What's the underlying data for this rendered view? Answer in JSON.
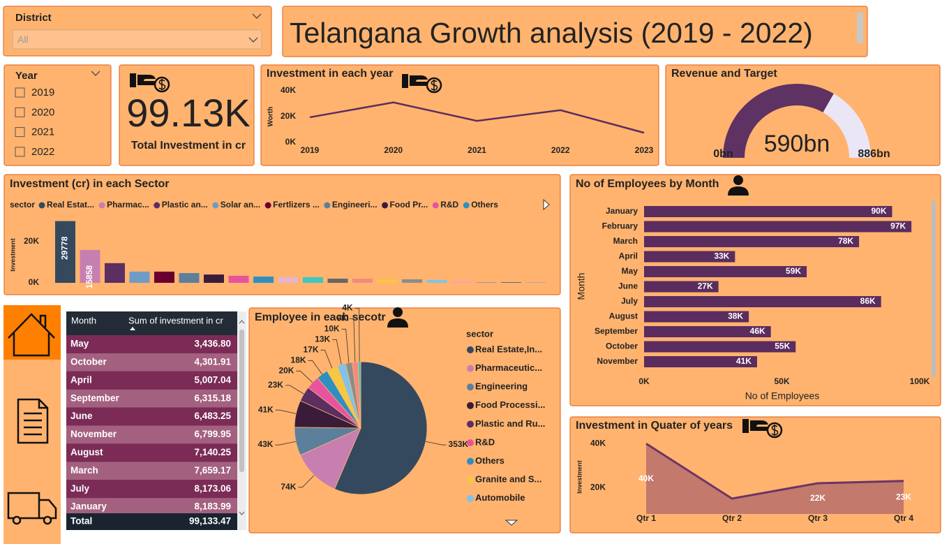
{
  "slicers": {
    "district": {
      "label": "District",
      "value": "All"
    },
    "year": {
      "label": "Year",
      "options": [
        "2019",
        "2020",
        "2021",
        "2022"
      ]
    }
  },
  "header": {
    "title": "Telangana Growth analysis (2019 - 2022)"
  },
  "card": {
    "value": "99.13K",
    "label": "Total Investment in cr"
  },
  "table": {
    "columns": [
      "Month",
      "Sum of investment in cr"
    ],
    "rows": [
      [
        "May",
        "3,436.80"
      ],
      [
        "October",
        "4,301.91"
      ],
      [
        "April",
        "5,007.04"
      ],
      [
        "September",
        "6,315.18"
      ],
      [
        "June",
        "6,483.25"
      ],
      [
        "November",
        "6,799.95"
      ],
      [
        "August",
        "7,140.25"
      ],
      [
        "March",
        "7,659.17"
      ],
      [
        "July",
        "8,173.06"
      ],
      [
        "January",
        "8,183.99"
      ]
    ],
    "total": [
      "Total",
      "99,133.47"
    ]
  },
  "chart_data": [
    {
      "type": "line",
      "title": "Investment in each year",
      "categories": [
        "2019",
        "2020",
        "2021",
        "2022",
        "2023"
      ],
      "values": [
        19500,
        31000,
        16700,
        25000,
        7500
      ],
      "ylabel": "Worth",
      "color": "#5b2c5e",
      "ylim": [
        0,
        40000
      ],
      "yticks": [
        {
          "value": 0,
          "label": "0K"
        },
        {
          "value": 20000,
          "label": "20K"
        },
        {
          "value": 40000,
          "label": "40K"
        }
      ]
    },
    {
      "type": "gauge",
      "title": "Revenue and Target",
      "values": [
        590
      ],
      "value_labels": [
        "590bn"
      ],
      "ylim": [
        0,
        886
      ],
      "yticks": [
        {
          "value": 0,
          "label": "0bn"
        },
        {
          "value": 886,
          "label": "886bn"
        }
      ],
      "color": "#5e3262",
      "track_color": "#ebe6f5"
    },
    {
      "type": "bar",
      "title": "Investment (cr) in each Sector",
      "legend_title": "sector",
      "categories": [
        "Real Estat...",
        "Pharmac...",
        "Plastic an...",
        "Solar an...",
        "Fertlizers ...",
        "Engineeri...",
        "Food Pr...",
        "R&D",
        "Others",
        null,
        null,
        null,
        null,
        null,
        null,
        null,
        null,
        null,
        null,
        null
      ],
      "values": [
        29778,
        15858,
        9500,
        5400,
        5400,
        4700,
        4000,
        3400,
        3000,
        2700,
        2700,
        2000,
        2000,
        1700,
        1700,
        1400,
        700,
        300,
        300,
        300
      ],
      "colors": [
        "#34495e",
        "#c77fb0",
        "#5c2e62",
        "#6f9cc4",
        "#6b0030",
        "#5c7f9c",
        "#3a1c3a",
        "#e8539e",
        "#2e8fc0",
        "#e5b5cc",
        "#3ec6c1",
        "#666666",
        "#f28b7c",
        "#f5c842",
        "#8c8c8c",
        "#7fc3e8",
        "#f2a1c2",
        "#9b8ab3",
        "#4a6670",
        "#b9a2a9"
      ],
      "ylabel": "Investment",
      "ylim": [
        0,
        32000
      ],
      "yticks": [
        {
          "value": 0,
          "label": "0K"
        },
        {
          "value": 20000,
          "label": "20K"
        }
      ]
    },
    {
      "type": "barh",
      "title": "No of Employees by Month",
      "categories": [
        "January",
        "February",
        "March",
        "April",
        "May",
        "June",
        "July",
        "August",
        "September",
        "October",
        "November"
      ],
      "values": [
        90000,
        97000,
        78000,
        33000,
        59000,
        27000,
        86000,
        38000,
        46000,
        55000,
        41000
      ],
      "value_labels": [
        "90K",
        "97K",
        "78K",
        "33K",
        "59K",
        "27K",
        "86K",
        "38K",
        "46K",
        "55K",
        "41K"
      ],
      "color": "#5b2c5e",
      "xlabel": "No of Employees",
      "ylabel": "Month",
      "xlim": [
        0,
        100000
      ],
      "xticks": [
        {
          "value": 0,
          "label": "0K"
        },
        {
          "value": 50000,
          "label": "50K"
        },
        {
          "value": 100000,
          "label": "100K"
        }
      ]
    },
    {
      "type": "pie",
      "title": "Employee in each secotr",
      "legend_title": "sector",
      "categories": [
        "Real Estate,In...",
        "Pharmaceutic...",
        "Engineering",
        "Food Processi...",
        "Plastic and Ru...",
        "R&D",
        "Others",
        "Granite and S...",
        "Automobile",
        null,
        null,
        null
      ],
      "values": [
        353000,
        74000,
        43000,
        41000,
        23000,
        20000,
        18000,
        17000,
        13000,
        10000,
        9000,
        4000
      ],
      "value_labels": [
        "353K",
        "74K",
        "43K",
        "41K",
        "23K",
        "20K",
        "18K",
        "17K",
        "13K",
        "10K",
        "9K",
        "4K"
      ],
      "colors": [
        "#34495e",
        "#c77fb0",
        "#5c7f9c",
        "#3a1c3a",
        "#5c2e62",
        "#e8539e",
        "#2e8fc0",
        "#f5c842",
        "#7fc3e8",
        "#8c8c8c",
        "#f28b7c",
        "#3ec6c1"
      ]
    },
    {
      "type": "area",
      "title": "Investment in Quater of years",
      "categories": [
        "Qtr 1",
        "Qtr 2",
        "Qtr 3",
        "Qtr 4"
      ],
      "values": [
        40000,
        15000,
        22000,
        23000
      ],
      "value_labels": [
        "40K",
        null,
        "22K",
        "23K"
      ],
      "ylabel": "Investment",
      "color": "#6b3467",
      "fill": "#c3796c",
      "ylim": [
        8000,
        42000
      ],
      "yticks": [
        {
          "value": 20000,
          "label": "20K"
        },
        {
          "value": 40000,
          "label": "40K"
        }
      ]
    }
  ]
}
